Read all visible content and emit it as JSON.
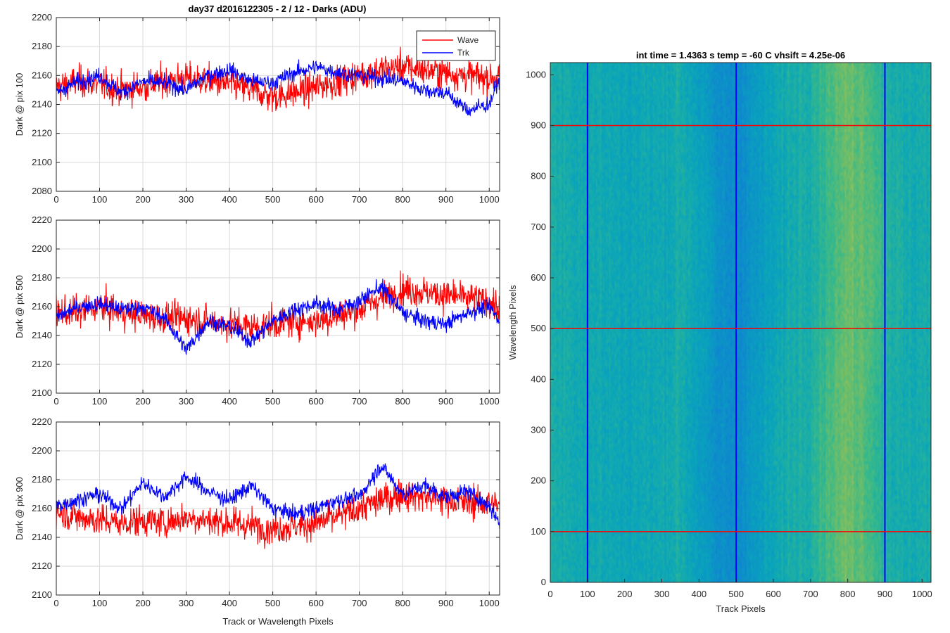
{
  "figure_title": "day37 d2016122305 - 2 / 12 - Darks (ADU)",
  "colors": {
    "wave": "#ff0000",
    "trk": "#0000ff",
    "grid": "#d9d9d9",
    "axis": "#262626"
  },
  "chart_data": [
    {
      "type": "line",
      "ylabel": "Dark @ pix 100",
      "xlim": [
        0,
        1024
      ],
      "ylim": [
        2080,
        2200
      ],
      "xticks": [
        0,
        100,
        200,
        300,
        400,
        500,
        600,
        700,
        800,
        900,
        1000
      ],
      "yticks": [
        2080,
        2100,
        2120,
        2140,
        2160,
        2180,
        2200
      ],
      "grid": true,
      "legend_position": "top-right",
      "series": [
        {
          "name": "Wave",
          "color": "#ff0000",
          "x": [
            0,
            50,
            100,
            150,
            200,
            250,
            300,
            350,
            400,
            450,
            500,
            550,
            600,
            650,
            700,
            750,
            800,
            850,
            900,
            950,
            1000,
            1024
          ],
          "values": [
            2152,
            2156,
            2154,
            2150,
            2152,
            2156,
            2158,
            2156,
            2154,
            2150,
            2145,
            2148,
            2152,
            2156,
            2160,
            2164,
            2166,
            2164,
            2162,
            2160,
            2158,
            2160
          ]
        },
        {
          "name": "Trk",
          "color": "#0000ff",
          "x": [
            0,
            50,
            100,
            150,
            200,
            250,
            300,
            350,
            400,
            450,
            500,
            550,
            600,
            650,
            700,
            750,
            800,
            850,
            900,
            950,
            1000,
            1024
          ],
          "values": [
            2148,
            2156,
            2160,
            2148,
            2156,
            2155,
            2150,
            2160,
            2164,
            2156,
            2155,
            2162,
            2166,
            2162,
            2160,
            2158,
            2156,
            2150,
            2148,
            2136,
            2140,
            2158
          ]
        }
      ]
    },
    {
      "type": "line",
      "ylabel": "Dark @ pix 500",
      "xlim": [
        0,
        1024
      ],
      "ylim": [
        2100,
        2220
      ],
      "xticks": [
        0,
        100,
        200,
        300,
        400,
        500,
        600,
        700,
        800,
        900,
        1000
      ],
      "yticks": [
        2100,
        2120,
        2140,
        2160,
        2180,
        2200,
        2220
      ],
      "grid": true,
      "series": [
        {
          "name": "Wave",
          "color": "#ff0000",
          "x": [
            0,
            50,
            100,
            150,
            200,
            250,
            300,
            350,
            400,
            450,
            500,
            550,
            600,
            650,
            700,
            750,
            800,
            850,
            900,
            950,
            1000,
            1024
          ],
          "values": [
            2156,
            2156,
            2160,
            2156,
            2154,
            2152,
            2152,
            2150,
            2148,
            2146,
            2148,
            2150,
            2150,
            2154,
            2158,
            2166,
            2172,
            2170,
            2168,
            2166,
            2164,
            2158
          ]
        },
        {
          "name": "Trk",
          "color": "#0000ff",
          "x": [
            0,
            50,
            100,
            150,
            200,
            250,
            300,
            350,
            400,
            450,
            500,
            550,
            600,
            650,
            700,
            750,
            800,
            850,
            900,
            950,
            1000,
            1024
          ],
          "values": [
            2152,
            2160,
            2162,
            2158,
            2160,
            2152,
            2130,
            2150,
            2146,
            2136,
            2150,
            2158,
            2162,
            2158,
            2164,
            2174,
            2156,
            2150,
            2148,
            2156,
            2160,
            2150
          ]
        }
      ]
    },
    {
      "type": "line",
      "ylabel": "Dark @ pix 900",
      "xlabel": "Track or Wavelength Pixels",
      "xlim": [
        0,
        1024
      ],
      "ylim": [
        2100,
        2220
      ],
      "xticks": [
        0,
        100,
        200,
        300,
        400,
        500,
        600,
        700,
        800,
        900,
        1000
      ],
      "yticks": [
        2100,
        2120,
        2140,
        2160,
        2180,
        2200,
        2220
      ],
      "grid": true,
      "series": [
        {
          "name": "Wave",
          "color": "#ff0000",
          "x": [
            0,
            50,
            100,
            150,
            200,
            250,
            300,
            350,
            400,
            450,
            500,
            550,
            600,
            650,
            700,
            750,
            800,
            850,
            900,
            950,
            1000,
            1024
          ],
          "values": [
            2158,
            2154,
            2152,
            2150,
            2152,
            2150,
            2154,
            2152,
            2150,
            2148,
            2146,
            2148,
            2150,
            2154,
            2160,
            2166,
            2170,
            2168,
            2166,
            2164,
            2164,
            2162
          ]
        },
        {
          "name": "Trk",
          "color": "#0000ff",
          "x": [
            0,
            50,
            100,
            150,
            200,
            250,
            300,
            350,
            400,
            450,
            500,
            550,
            600,
            650,
            700,
            750,
            800,
            850,
            900,
            950,
            1000,
            1024
          ],
          "values": [
            2162,
            2166,
            2170,
            2160,
            2178,
            2168,
            2182,
            2172,
            2166,
            2176,
            2160,
            2156,
            2160,
            2166,
            2168,
            2190,
            2170,
            2176,
            2168,
            2172,
            2162,
            2150
          ]
        }
      ]
    },
    {
      "type": "heatmap",
      "title": "int time = 1.4363 s    temp = -60 C    vhsift = 4.25e-06",
      "xlabel": "Track Pixels",
      "ylabel": "Wavelength Pixels",
      "xlim": [
        0,
        1024
      ],
      "ylim": [
        0,
        1024
      ],
      "xticks": [
        0,
        100,
        200,
        300,
        400,
        500,
        600,
        700,
        800,
        900,
        1000
      ],
      "yticks": [
        0,
        100,
        200,
        300,
        400,
        500,
        600,
        700,
        800,
        900,
        1000
      ],
      "colormap": "parula",
      "column_profile": {
        "x": [
          0,
          100,
          200,
          300,
          350,
          400,
          450,
          500,
          550,
          600,
          650,
          700,
          750,
          800,
          850,
          900,
          950,
          1024
        ],
        "level": [
          0.5,
          0.48,
          0.46,
          0.47,
          0.5,
          0.44,
          0.36,
          0.35,
          0.4,
          0.45,
          0.5,
          0.52,
          0.6,
          0.66,
          0.64,
          0.54,
          0.48,
          0.5
        ]
      },
      "markers": {
        "vertical_lines": {
          "color": "#0000ff",
          "x": [
            100,
            500,
            900
          ]
        },
        "horizontal_lines": {
          "color": "#ff0000",
          "y": [
            100,
            500,
            900
          ]
        }
      }
    }
  ]
}
